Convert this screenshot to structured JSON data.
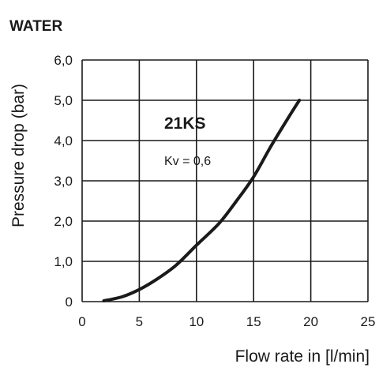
{
  "chart_data": {
    "type": "line",
    "title": "WATER",
    "xlabel": "Flow rate in [l/min]",
    "ylabel": "Pressure drop (bar)",
    "xlim": [
      0,
      25
    ],
    "ylim": [
      0,
      6
    ],
    "grid": true,
    "x_ticks": [
      "0",
      "5",
      "10",
      "15",
      "20",
      "25"
    ],
    "y_ticks": [
      "0",
      "1,0",
      "2,0",
      "3,0",
      "4,0",
      "5,0",
      "6,0"
    ],
    "annotations": {
      "model": "21KS",
      "kv": "Kv = 0,6"
    },
    "series": [
      {
        "x": [
          1.9,
          3.5,
          5.0,
          6.5,
          8.2,
          10.0,
          12.0,
          13.5,
          15.0,
          16.5,
          18.0,
          19.0
        ],
        "y": [
          0.02,
          0.12,
          0.3,
          0.55,
          0.9,
          1.4,
          1.95,
          2.5,
          3.1,
          3.85,
          4.55,
          5.0
        ]
      }
    ],
    "colors": {
      "line": "#1a1a1a",
      "grid": "#1a1a1a"
    }
  }
}
